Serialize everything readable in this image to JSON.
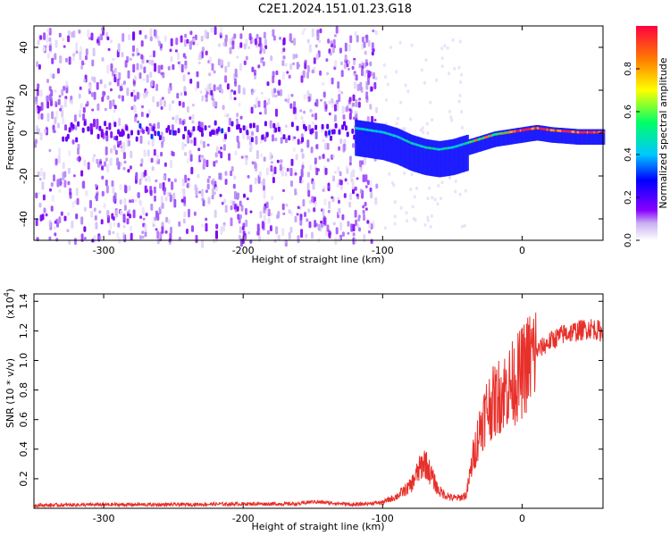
{
  "title": "C2E1.2024.151.01.23.G18",
  "chart_data": [
    {
      "type": "heatmap",
      "xlabel": "Height of straight line (km)",
      "ylabel": "Frequency (Hz)",
      "xlim": [
        -350,
        58
      ],
      "ylim": [
        -50,
        50
      ],
      "xticks": [
        -300,
        -200,
        -100,
        0
      ],
      "yticks": [
        -40,
        -20,
        0,
        20,
        40
      ],
      "colorbar": {
        "label": "Normalized spectral amplitude",
        "range": [
          0,
          1
        ],
        "ticks": [
          "0.0",
          "0.2",
          "0.4",
          "0.6",
          "0.8"
        ],
        "colormap": [
          "#ffffff",
          "#8a00ff",
          "#0000ff",
          "#00c8ff",
          "#00ff66",
          "#ffff00",
          "#ff8000",
          "#ff0040"
        ]
      },
      "signal_track": {
        "x": [
          -120,
          -110,
          -100,
          -90,
          -80,
          -70,
          -60,
          -50,
          -40,
          -30,
          -20,
          -10,
          0,
          10,
          20,
          30,
          40,
          50,
          58
        ],
        "y": [
          2,
          1,
          0,
          -2,
          -5,
          -7,
          -8,
          -7,
          -5,
          -3,
          -1,
          0,
          1,
          2,
          1,
          0.5,
          0,
          0,
          0
        ],
        "peak_amplitude_region": [
          -10,
          58
        ]
      },
      "noise_region": [
        -350,
        -105
      ],
      "grid": false
    },
    {
      "type": "line",
      "xlabel": "Height of straight line (km)",
      "ylabel": "SNR (10 * v/v)",
      "y_scale_label": "(x10",
      "y_scale_exponent": "4",
      "y_scale": 10000,
      "xlim": [
        -350,
        58
      ],
      "ylim": [
        0,
        14500
      ],
      "xticks": [
        -300,
        -200,
        -100,
        0
      ],
      "yticks": [
        "0.2",
        "0.4",
        "0.6",
        "0.8",
        "1.0",
        "1.2",
        "1.4"
      ],
      "series": [
        {
          "color": "#e8302a",
          "x": [
            -350,
            -300,
            -250,
            -200,
            -160,
            -150,
            -120,
            -100,
            -90,
            -80,
            -75,
            -70,
            -65,
            -60,
            -55,
            -50,
            -45,
            -40,
            -35,
            -30,
            -25,
            -20,
            -15,
            -10,
            -5,
            0,
            5,
            10,
            20,
            30,
            40,
            50,
            58
          ],
          "y": [
            200,
            250,
            250,
            300,
            300,
            450,
            250,
            400,
            800,
            1500,
            2400,
            3200,
            2200,
            1200,
            900,
            700,
            700,
            900,
            3500,
            5500,
            6800,
            7200,
            7800,
            8200,
            8600,
            9200,
            10000,
            10600,
            11300,
            11800,
            12000,
            12200,
            11900
          ]
        }
      ],
      "grid": false
    }
  ]
}
